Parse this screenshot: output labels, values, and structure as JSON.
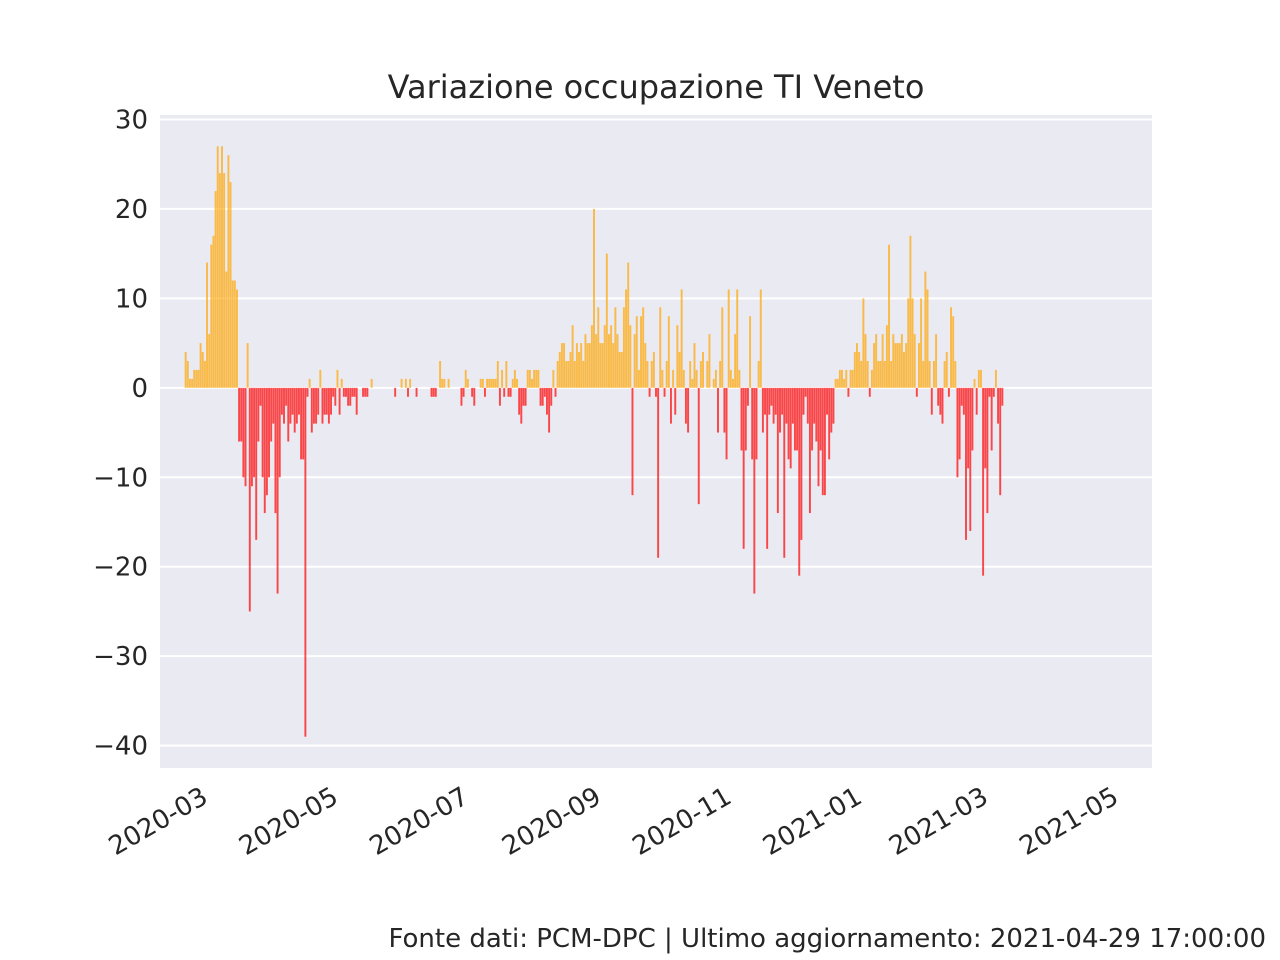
{
  "chart_data": {
    "type": "bar",
    "title": "Variazione occupazione TI Veneto",
    "xlabel": "",
    "ylabel": "",
    "ylim": [
      -42.5,
      30.5
    ],
    "yticks": [
      30,
      20,
      10,
      0,
      -10,
      -20,
      -30,
      -40
    ],
    "ytick_labels": [
      "30",
      "20",
      "10",
      "0",
      "−10",
      "−20",
      "−30",
      "−40"
    ],
    "x_range": [
      "2020-02-12",
      "2021-05-21"
    ],
    "xticks": [
      "2020-03-01",
      "2020-05-01",
      "2020-07-01",
      "2020-09-01",
      "2020-11-01",
      "2021-01-01",
      "2021-03-01",
      "2021-05-01"
    ],
    "xtick_labels": [
      "2020-03",
      "2020-05",
      "2020-07",
      "2020-09",
      "2020-11",
      "2021-01",
      "2021-03",
      "2021-05"
    ],
    "grid": true,
    "legend": "none",
    "colors": {
      "positive": "#ffa500",
      "negative": "#ff0000",
      "background": "#eaeaf2",
      "grid": "#ffffff",
      "text": "#262626"
    },
    "x_start": "2020-02-24",
    "x_end": "2021-04-29",
    "series": [
      {
        "values": [
          4,
          3,
          1,
          1,
          2,
          2,
          2,
          5,
          4,
          3,
          14,
          6,
          16,
          17,
          22,
          27,
          24,
          27,
          24,
          13,
          26,
          23,
          12,
          12,
          11,
          -6,
          -6,
          -10,
          -11,
          5,
          -25,
          -11,
          -10,
          -17,
          -6,
          -2,
          -10,
          -14,
          -12,
          -10,
          -6,
          -4,
          -14,
          -23,
          -10,
          -3,
          -4,
          -2,
          -6,
          -4,
          -3,
          -5,
          -4,
          -3,
          -8,
          -8,
          -39,
          -1,
          1,
          -5,
          -4,
          -4,
          -3,
          2,
          -4,
          -3,
          -3,
          -4,
          -3,
          -1,
          -2,
          2,
          -3,
          1,
          -1,
          -1,
          -2,
          -2,
          -1,
          -1,
          -3,
          0,
          0,
          -1,
          -1,
          -1,
          0,
          1,
          0,
          0,
          0,
          0,
          0,
          0,
          0,
          0,
          0,
          0,
          -1,
          0,
          0,
          1,
          0,
          1,
          -1,
          1,
          0,
          0,
          -1,
          0,
          0,
          0,
          0,
          0,
          0,
          -1,
          -1,
          -1,
          0,
          3,
          1,
          1,
          0,
          1,
          0,
          0,
          0,
          0,
          0,
          -2,
          -1,
          2,
          1,
          0,
          -1,
          -2,
          0,
          0,
          1,
          1,
          -1,
          1,
          1,
          1,
          1,
          1,
          3,
          -2,
          2,
          -1,
          3,
          -1,
          -1,
          1,
          2,
          1,
          -3,
          -4,
          -2,
          -2,
          2,
          2,
          1,
          2,
          2,
          2,
          -2,
          -2,
          -1,
          -3,
          -5,
          -2,
          2,
          -1,
          3,
          4,
          5,
          5,
          3,
          3,
          4,
          7,
          3,
          5,
          4,
          5,
          3,
          6,
          5,
          5,
          7,
          20,
          6,
          9,
          5,
          5,
          7,
          15,
          6,
          7,
          5,
          9,
          6,
          4,
          4,
          9,
          11,
          14,
          7,
          -12,
          6,
          8,
          2,
          8,
          9,
          5,
          3,
          -1,
          3,
          4,
          -1,
          -19,
          9,
          2,
          -1,
          3,
          8,
          -4,
          2,
          -3,
          7,
          4,
          11,
          2,
          -4,
          -5,
          3,
          1,
          5,
          2,
          -13,
          3,
          4,
          0,
          3,
          6,
          0,
          1,
          2,
          -5,
          3,
          9,
          -5,
          -8,
          11,
          2,
          1,
          6,
          11,
          2,
          -7,
          -18,
          -7,
          -2,
          8,
          -8,
          -23,
          -8,
          3,
          11,
          -5,
          -3,
          -18,
          -3,
          -2,
          -4,
          -3,
          -14,
          -5,
          -3,
          -19,
          -4,
          -8,
          -9,
          -4,
          -7,
          -7,
          -21,
          -17,
          -3,
          -1,
          -4,
          -14,
          -7,
          -4,
          -6,
          -11,
          -7,
          -12,
          -12,
          -3,
          -8,
          -5,
          -4,
          1,
          1,
          2,
          2,
          1,
          2,
          -1,
          2,
          2,
          4,
          5,
          4,
          3,
          10,
          6,
          3,
          -1,
          2,
          5,
          6,
          3,
          3,
          6,
          3,
          7,
          16,
          3,
          6,
          5,
          5,
          5,
          6,
          4,
          5,
          10,
          17,
          10,
          6,
          -1,
          5,
          10,
          3,
          13,
          11,
          3,
          -3,
          3,
          6,
          -2,
          -3,
          -4,
          3,
          4,
          -1,
          9,
          8,
          3,
          -10,
          -8,
          -2,
          -3,
          -17,
          -9,
          -16,
          -7,
          1,
          -3,
          2,
          2,
          -21,
          -9,
          -14,
          -1,
          -7,
          -1,
          2,
          -4,
          -12,
          -2
        ]
      }
    ]
  },
  "footer": "Fonte dati: PCM-DPC | Ultimo aggiornamento: 2021-04-29 17:00:00"
}
